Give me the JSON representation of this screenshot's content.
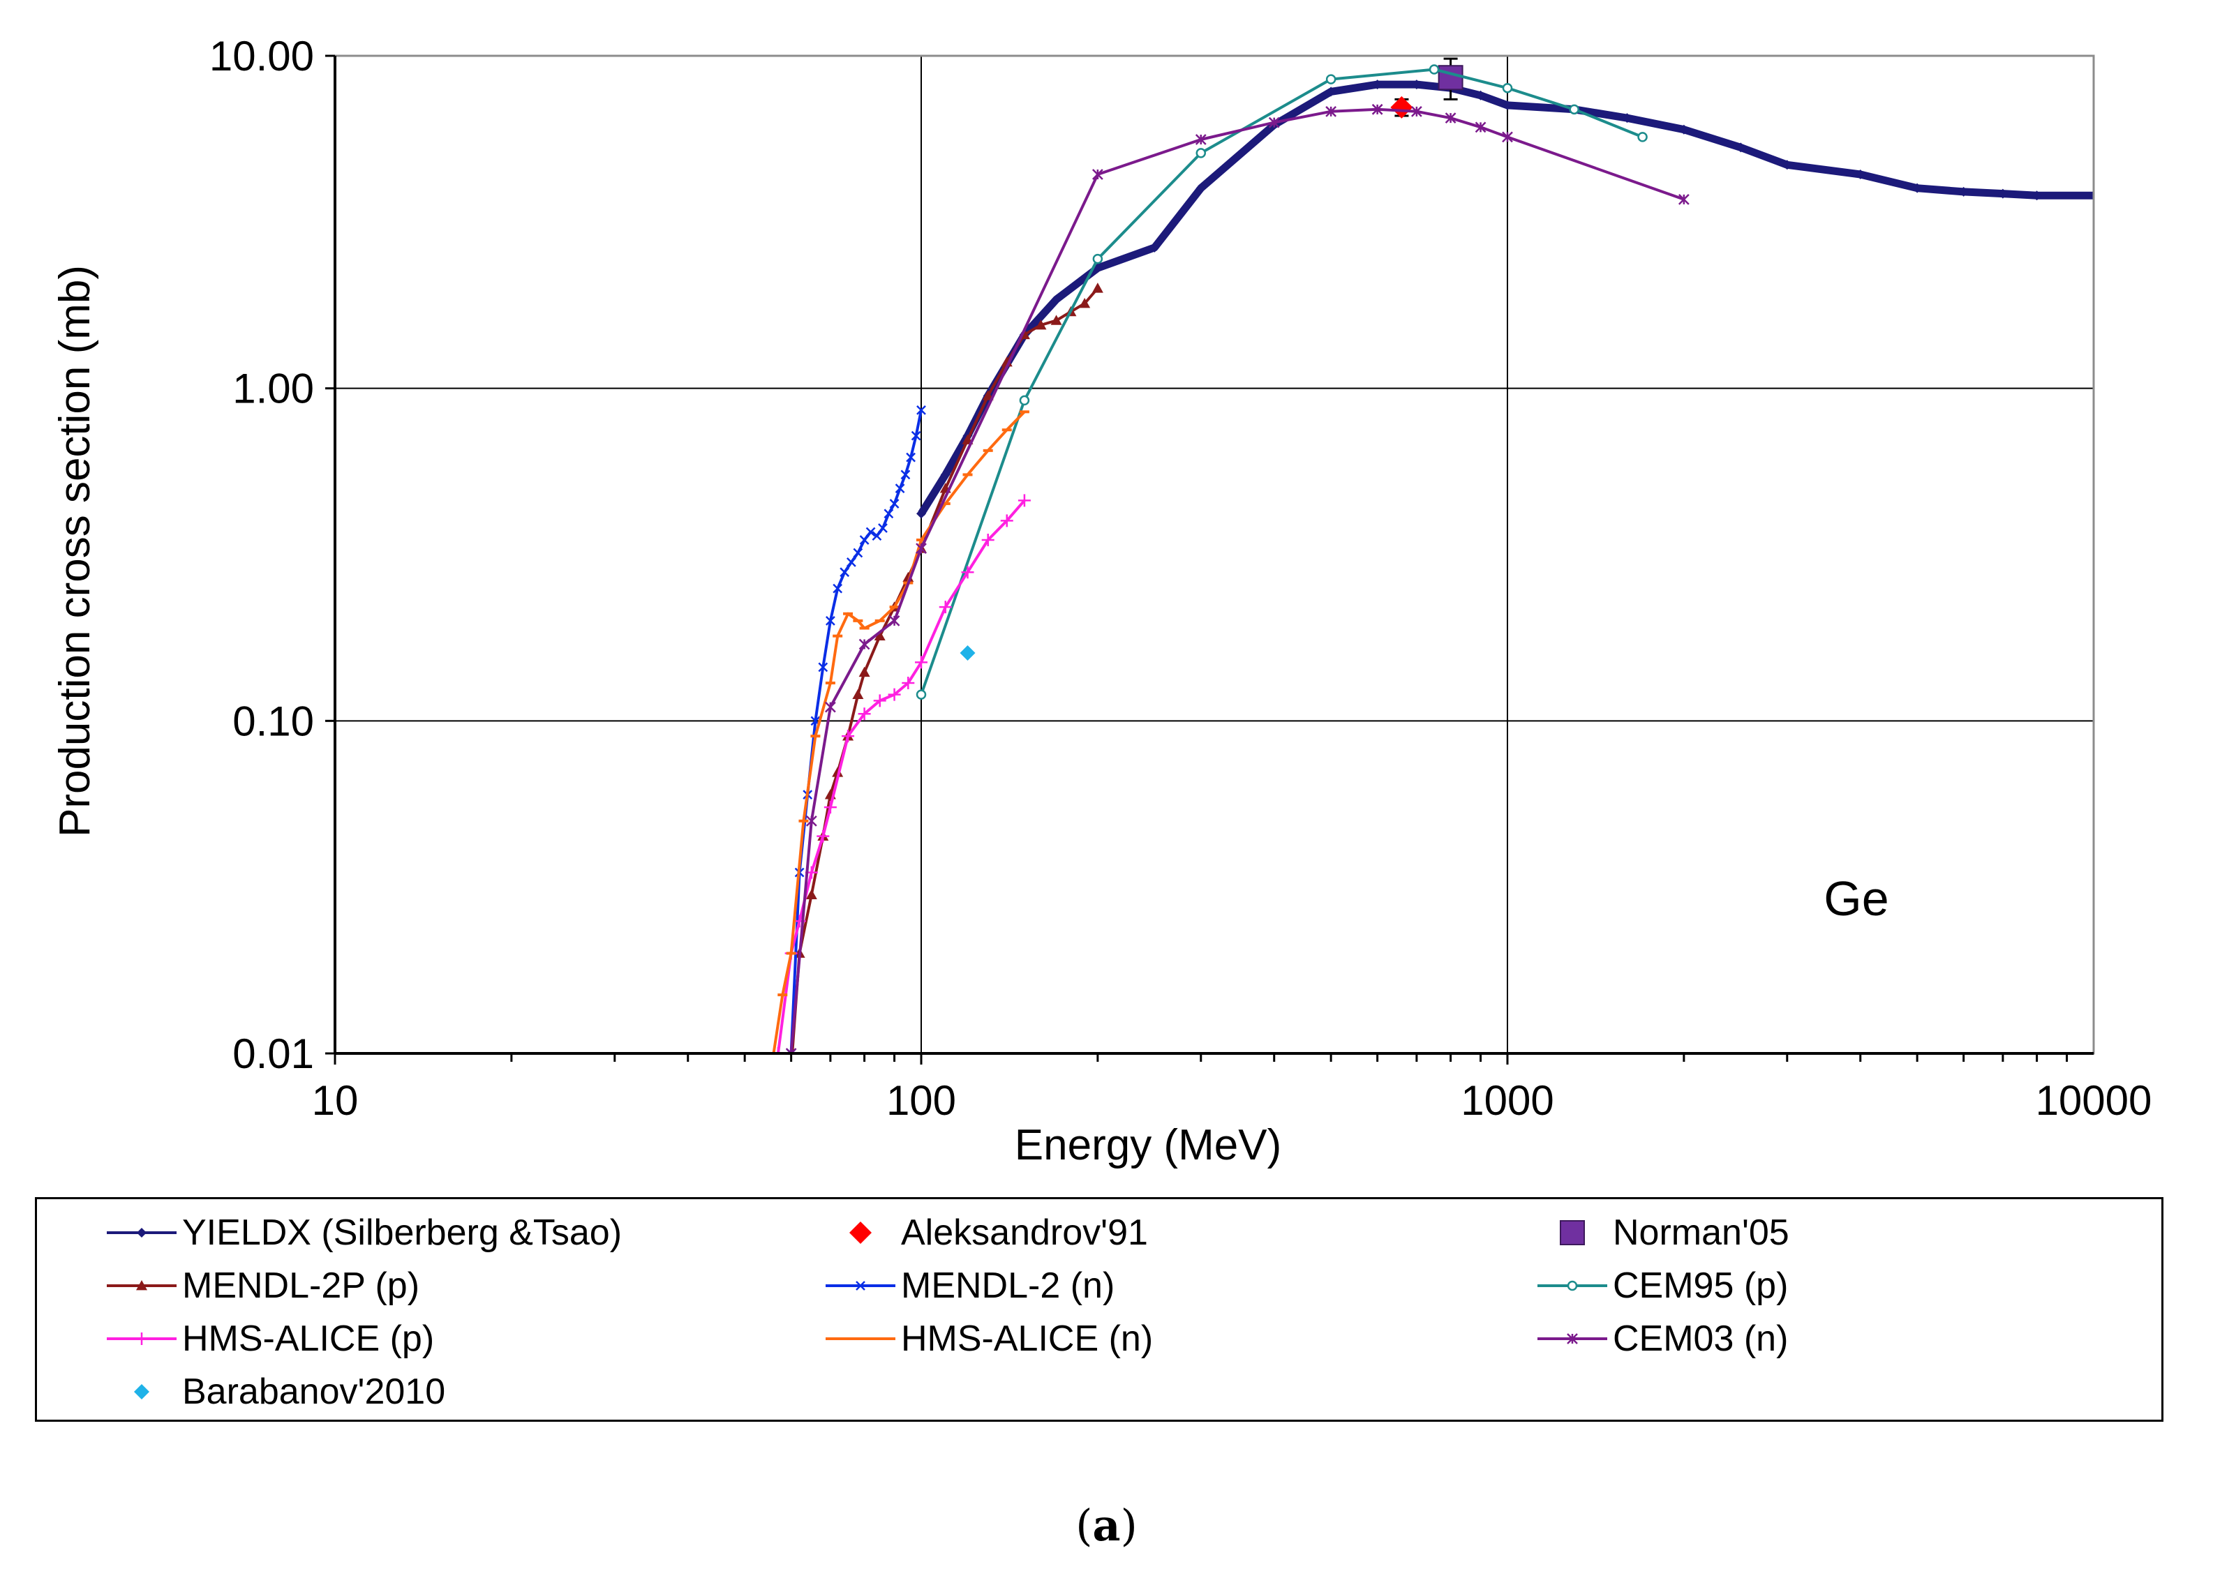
{
  "figure_label": "a",
  "chart_data": {
    "type": "line",
    "xscale": "log",
    "yscale": "log",
    "xlabel": "Energy (MeV)",
    "ylabel": "Production cross section (mb)",
    "xlim": [
      10,
      10000
    ],
    "ylim": [
      0.01,
      10
    ],
    "x_ticks": [
      10,
      100,
      1000,
      10000
    ],
    "x_tick_labels": [
      "10",
      "100",
      "1000",
      "10000"
    ],
    "y_ticks": [
      0.01,
      0.1,
      1,
      10
    ],
    "y_tick_labels": [
      "0.01",
      "0.10",
      "1.00",
      "10.00"
    ],
    "annotation": "Ge",
    "grid": true,
    "legend_position": "below",
    "series": [
      {
        "name": "YIELDX (Silberberg &Tsao)",
        "color": "#1c1a7a",
        "marker": "diamond",
        "style": "thick-line",
        "x": [
          100,
          110,
          120,
          130,
          150,
          170,
          200,
          250,
          300,
          400,
          500,
          600,
          700,
          800,
          900,
          1000,
          1300,
          1600,
          2000,
          2500,
          3000,
          4000,
          5000,
          6000,
          7000,
          8000,
          10000
        ],
        "y": [
          0.42,
          0.55,
          0.72,
          0.95,
          1.45,
          1.85,
          2.3,
          2.65,
          4.0,
          6.2,
          7.8,
          8.2,
          8.2,
          8.0,
          7.6,
          7.1,
          6.9,
          6.5,
          6.0,
          5.3,
          4.7,
          4.4,
          4.0,
          3.9,
          3.85,
          3.8,
          3.8
        ]
      },
      {
        "name": "Aleksandrov'91",
        "color": "#ff0000",
        "marker": "diamond-large",
        "style": "points",
        "x": [
          660
        ],
        "y": [
          7.0
        ],
        "yerr": [
          0.4
        ]
      },
      {
        "name": "Norman'05",
        "color": "#7030a0",
        "marker": "square",
        "style": "points",
        "x": [
          800
        ],
        "y": [
          8.6
        ],
        "yerr": [
          1.2
        ]
      },
      {
        "name": "MENDL-2P (p)",
        "color": "#8b1a1a",
        "marker": "triangle",
        "style": "line",
        "x": [
          60,
          62,
          65,
          68,
          70,
          72,
          75,
          78,
          80,
          85,
          90,
          95,
          100,
          110,
          120,
          130,
          140,
          150,
          160,
          170,
          180,
          190,
          200
        ],
        "y": [
          0.009,
          0.02,
          0.03,
          0.045,
          0.06,
          0.07,
          0.09,
          0.12,
          0.14,
          0.18,
          0.22,
          0.27,
          0.33,
          0.5,
          0.7,
          0.95,
          1.2,
          1.45,
          1.55,
          1.6,
          1.7,
          1.8,
          2.0
        ]
      },
      {
        "name": "MENDL-2 (n)",
        "color": "#0a2ee6",
        "marker": "x",
        "style": "line",
        "x": [
          60,
          62,
          64,
          66,
          68,
          70,
          72,
          74,
          76,
          78,
          80,
          82,
          84,
          86,
          88,
          90,
          92,
          94,
          96,
          98,
          100
        ],
        "y": [
          0.01,
          0.035,
          0.06,
          0.1,
          0.145,
          0.2,
          0.25,
          0.28,
          0.3,
          0.32,
          0.35,
          0.37,
          0.36,
          0.38,
          0.42,
          0.45,
          0.5,
          0.55,
          0.62,
          0.72,
          0.86
        ]
      },
      {
        "name": "CEM95 (p)",
        "color": "#1c8c8c",
        "marker": "circle",
        "style": "line",
        "x": [
          100,
          150,
          200,
          300,
          500,
          750,
          1000,
          1300,
          1700
        ],
        "y": [
          0.12,
          0.92,
          2.45,
          5.1,
          8.5,
          9.1,
          8.0,
          6.9,
          5.7
        ]
      },
      {
        "name": "HMS-ALICE (p)",
        "color": "#ff20e0",
        "marker": "plus",
        "style": "line",
        "x": [
          57,
          60,
          62,
          65,
          68,
          70,
          75,
          80,
          85,
          90,
          95,
          100,
          110,
          120,
          130,
          140,
          150
        ],
        "y": [
          0.01,
          0.02,
          0.025,
          0.035,
          0.045,
          0.055,
          0.09,
          0.105,
          0.115,
          0.12,
          0.13,
          0.15,
          0.22,
          0.28,
          0.35,
          0.4,
          0.46
        ]
      },
      {
        "name": "HMS-ALICE (n)",
        "color": "#ff6a10",
        "marker": "dash",
        "style": "line",
        "x": [
          56,
          58,
          60,
          63,
          66,
          70,
          72,
          75,
          78,
          80,
          85,
          90,
          95,
          100,
          110,
          120,
          130,
          140,
          150
        ],
        "y": [
          0.01,
          0.015,
          0.02,
          0.05,
          0.09,
          0.13,
          0.18,
          0.21,
          0.2,
          0.19,
          0.2,
          0.22,
          0.26,
          0.35,
          0.45,
          0.55,
          0.65,
          0.75,
          0.85
        ]
      },
      {
        "name": "CEM03 (n)",
        "color": "#7b1a8c",
        "marker": "asterisk",
        "style": "line",
        "x": [
          60,
          65,
          70,
          80,
          90,
          100,
          200,
          300,
          400,
          500,
          600,
          700,
          800,
          900,
          1000,
          2000
        ],
        "y": [
          0.01,
          0.05,
          0.11,
          0.17,
          0.2,
          0.33,
          4.4,
          5.6,
          6.3,
          6.8,
          6.9,
          6.8,
          6.5,
          6.1,
          5.7,
          3.7
        ]
      },
      {
        "name": "Barabanov'2010",
        "color": "#1fb2e8",
        "marker": "diamond-small",
        "style": "points",
        "x": [
          120
        ],
        "y": [
          0.16
        ]
      }
    ]
  }
}
